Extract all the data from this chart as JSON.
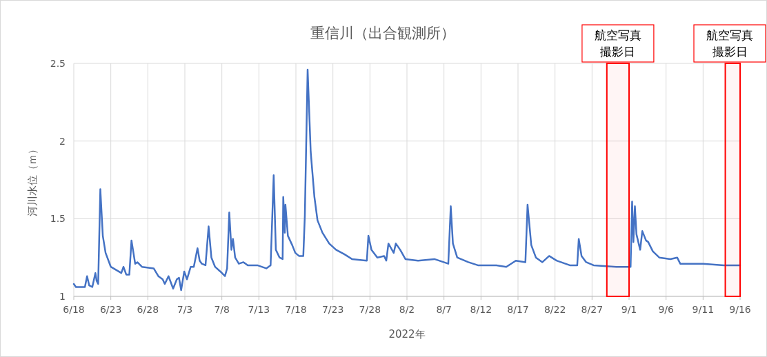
{
  "chart_data": {
    "type": "line",
    "title": "重信川（出合観測所）",
    "xlabel": "2022年",
    "ylabel": "河川水位（ｍ）",
    "x": [
      "2022-06-18T00:00",
      "2022-06-18T07:00",
      "2022-06-19T12:00",
      "2022-06-19T19:00",
      "2022-06-20T02:00",
      "2022-06-20T12:00",
      "2022-06-20T22:00",
      "2022-06-21T02:00",
      "2022-06-21T07:00",
      "2022-06-21T14:00",
      "2022-06-21T22:00",
      "2022-06-22T07:00",
      "2022-06-23T00:00",
      "2022-06-24T10:00",
      "2022-06-24T17:00",
      "2022-06-25T02:00",
      "2022-06-25T12:00",
      "2022-06-25T19:00",
      "2022-06-26T07:00",
      "2022-06-26T14:00",
      "2022-06-27T05:00",
      "2022-06-28T19:00",
      "2022-06-29T10:00",
      "2022-06-30T00:00",
      "2022-06-30T07:00",
      "2022-06-30T19:00",
      "2022-07-01T10:00",
      "2022-07-01T22:00",
      "2022-07-02T05:00",
      "2022-07-02T12:00",
      "2022-07-02T22:00",
      "2022-07-03T07:00",
      "2022-07-03T19:00",
      "2022-07-04T05:00",
      "2022-07-04T17:00",
      "2022-07-05T00:00",
      "2022-07-05T07:00",
      "2022-07-05T19:00",
      "2022-07-06T05:00",
      "2022-07-06T14:00",
      "2022-07-07T02:00",
      "2022-07-07T19:00",
      "2022-07-08T10:00",
      "2022-07-08T17:00",
      "2022-07-09T00:00",
      "2022-07-09T07:00",
      "2022-07-09T12:00",
      "2022-07-09T19:00",
      "2022-07-10T07:00",
      "2022-07-10T22:00",
      "2022-07-11T12:00",
      "2022-07-12T19:00",
      "2022-07-14T00:00",
      "2022-07-14T14:00",
      "2022-07-15T00:00",
      "2022-07-15T07:00",
      "2022-07-15T19:00",
      "2022-07-16T05:00",
      "2022-07-16T07:00",
      "2022-07-16T12:00",
      "2022-07-16T14:00",
      "2022-07-16T22:00",
      "2022-07-17T12:00",
      "2022-07-17T22:00",
      "2022-07-18T10:00",
      "2022-07-19T00:00",
      "2022-07-19T05:00",
      "2022-07-19T14:00",
      "2022-07-20T00:00",
      "2022-07-20T12:00",
      "2022-07-20T22:00",
      "2022-07-21T14:00",
      "2022-07-22T12:00",
      "2022-07-23T10:00",
      "2022-07-24T14:00",
      "2022-07-25T14:00",
      "2022-07-27T14:00",
      "2022-07-27T19:00",
      "2022-07-28T05:00",
      "2022-07-29T00:00",
      "2022-07-29T22:00",
      "2022-07-30T05:00",
      "2022-07-30T12:00",
      "2022-07-31T05:00",
      "2022-07-31T12:00",
      "2022-08-01T02:00",
      "2022-08-01T19:00",
      "2022-08-03T12:00",
      "2022-08-05T17:00",
      "2022-08-07T14:00",
      "2022-08-07T22:00",
      "2022-08-08T05:00",
      "2022-08-08T19:00",
      "2022-08-10T07:00",
      "2022-08-11T14:00",
      "2022-08-14T02:00",
      "2022-08-15T10:00",
      "2022-08-16T17:00",
      "2022-08-18T00:00",
      "2022-08-18T07:00",
      "2022-08-18T19:00",
      "2022-08-19T10:00",
      "2022-08-20T07:00",
      "2022-08-21T05:00",
      "2022-08-22T05:00",
      "2022-08-24T00:00",
      "2022-08-25T00:00",
      "2022-08-25T05:00",
      "2022-08-25T14:00",
      "2022-08-26T05:00",
      "2022-08-27T05:00",
      "2022-08-30T07:00",
      "2022-09-01T05:00",
      "2022-09-01T10:00",
      "2022-09-01T14:00",
      "2022-09-01T19:00",
      "2022-09-02T00:00",
      "2022-09-02T12:00",
      "2022-09-02T19:00",
      "2022-09-03T07:00",
      "2022-09-03T14:00",
      "2022-09-04T05:00",
      "2022-09-05T02:00",
      "2022-09-06T14:00",
      "2022-09-07T12:00",
      "2022-09-07T22:00",
      "2022-09-11T00:00",
      "2022-09-13T19:00",
      "2022-09-16T00:00"
    ],
    "series": [
      {
        "color": "#4472c4",
        "values": [
          1.08,
          1.06,
          1.06,
          1.13,
          1.07,
          1.06,
          1.15,
          1.1,
          1.08,
          1.69,
          1.39,
          1.28,
          1.19,
          1.15,
          1.19,
          1.14,
          1.14,
          1.36,
          1.21,
          1.22,
          1.19,
          1.18,
          1.13,
          1.11,
          1.08,
          1.13,
          1.05,
          1.11,
          1.12,
          1.04,
          1.16,
          1.11,
          1.19,
          1.19,
          1.31,
          1.23,
          1.21,
          1.2,
          1.45,
          1.25,
          1.19,
          1.16,
          1.13,
          1.18,
          1.54,
          1.3,
          1.37,
          1.25,
          1.21,
          1.22,
          1.2,
          1.2,
          1.18,
          1.2,
          1.78,
          1.3,
          1.25,
          1.24,
          1.64,
          1.41,
          1.59,
          1.39,
          1.33,
          1.28,
          1.26,
          1.26,
          1.52,
          2.46,
          1.93,
          1.64,
          1.49,
          1.41,
          1.34,
          1.3,
          1.27,
          1.24,
          1.23,
          1.39,
          1.3,
          1.25,
          1.26,
          1.23,
          1.34,
          1.28,
          1.34,
          1.3,
          1.24,
          1.23,
          1.24,
          1.21,
          1.58,
          1.34,
          1.25,
          1.22,
          1.2,
          1.2,
          1.19,
          1.23,
          1.22,
          1.59,
          1.33,
          1.25,
          1.22,
          1.26,
          1.23,
          1.2,
          1.2,
          1.37,
          1.26,
          1.22,
          1.2,
          1.19,
          1.19,
          1.61,
          1.35,
          1.58,
          1.4,
          1.3,
          1.42,
          1.36,
          1.35,
          1.29,
          1.25,
          1.24,
          1.25,
          1.21,
          1.21,
          1.2,
          1.2
        ]
      }
    ],
    "xlim": [
      "2022-06-18",
      "2022-09-16"
    ],
    "xticks": [
      {
        "value": "2022-06-18",
        "label": "6/18"
      },
      {
        "value": "2022-06-23",
        "label": "6/23"
      },
      {
        "value": "2022-06-28",
        "label": "6/28"
      },
      {
        "value": "2022-07-03",
        "label": "7/3"
      },
      {
        "value": "2022-07-08",
        "label": "7/8"
      },
      {
        "value": "2022-07-13",
        "label": "7/13"
      },
      {
        "value": "2022-07-18",
        "label": "7/18"
      },
      {
        "value": "2022-07-23",
        "label": "7/23"
      },
      {
        "value": "2022-07-28",
        "label": "7/28"
      },
      {
        "value": "2022-08-02",
        "label": "8/2"
      },
      {
        "value": "2022-08-07",
        "label": "8/7"
      },
      {
        "value": "2022-08-12",
        "label": "8/12"
      },
      {
        "value": "2022-08-17",
        "label": "8/17"
      },
      {
        "value": "2022-08-22",
        "label": "8/22"
      },
      {
        "value": "2022-08-27",
        "label": "8/27"
      },
      {
        "value": "2022-09-01",
        "label": "9/1"
      },
      {
        "value": "2022-09-06",
        "label": "9/6"
      },
      {
        "value": "2022-09-11",
        "label": "9/11"
      },
      {
        "value": "2022-09-16",
        "label": "9/16"
      }
    ],
    "ylim": [
      1,
      2.5
    ],
    "yticks": [
      1,
      1.5,
      2,
      2.5
    ],
    "grid": true,
    "bands": [
      {
        "axis": "x",
        "from": "2022-08-29",
        "to": "2022-09-01",
        "label": "航空写真撮影日",
        "color": "#ff0000"
      },
      {
        "axis": "x",
        "from": "2022-09-14",
        "to": "2022-09-16",
        "label": "航空写真撮影日",
        "color": "#ff0000"
      }
    ]
  }
}
